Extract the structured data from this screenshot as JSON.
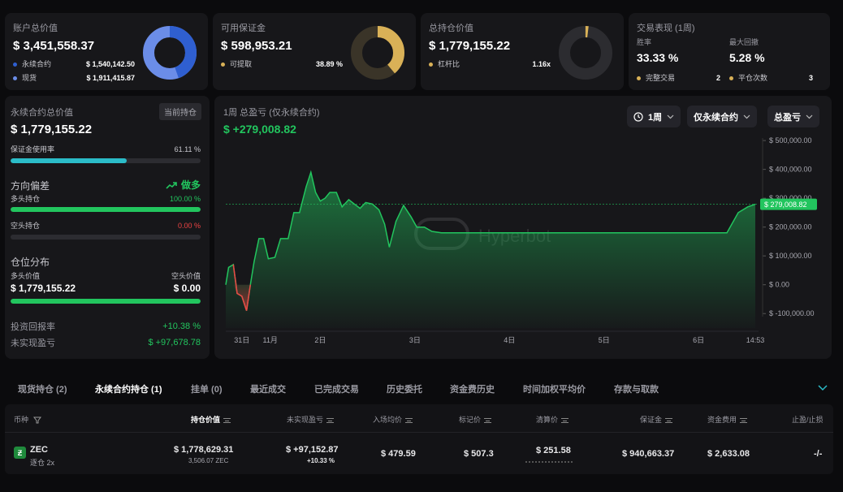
{
  "account": {
    "title": "账户总价值",
    "value": "$ 3,451,558.37",
    "items": [
      {
        "label": "永续合约",
        "value": "$ 1,540,142.50"
      },
      {
        "label": "现货",
        "value": "$ 1,911,415.87"
      }
    ],
    "colors": {
      "perp": "#2f5fd0",
      "spot": "#6b8de8"
    }
  },
  "margin": {
    "title": "可用保证金",
    "value": "$ 598,953.21",
    "item_label": "可提取",
    "item_value": "38.89 %",
    "fraction": 0.3889,
    "color": "#d9b157"
  },
  "holdings": {
    "title": "总持仓价值",
    "value": "$ 1,779,155.22",
    "item_label": "杠杆比",
    "item_value": "1.16x",
    "color": "#d9b157"
  },
  "performance": {
    "title": "交易表现 (1周)",
    "winrate_label": "胜率",
    "winrate": "33.33 %",
    "drawdown_label": "最大回撤",
    "drawdown": "5.28 %",
    "closed_label": "完整交易",
    "closed_value": "2",
    "count_label": "平仓次数",
    "count_value": "3"
  },
  "perp": {
    "title": "永续合约总价值",
    "badge": "当前持仓",
    "value": "$ 1,779,155.22",
    "margin_usage_label": "保证金使用率",
    "margin_usage": "61.11 %",
    "margin_usage_fraction": 0.6111,
    "bias_label": "方向偏差",
    "bias_value": "做多",
    "long_label": "多头持仓",
    "long_value": "100.00 %",
    "long_fraction": 1.0,
    "short_label": "空头持仓",
    "short_value": "0.00 %",
    "short_fraction": 0.0,
    "dist_label": "仓位分布",
    "long_val_label": "多头价值",
    "short_val_label": "空头价值",
    "long_val": "$ 1,779,155.22",
    "short_val": "$ 0.00",
    "roi_label": "投资回报率",
    "roi_value": "+10.38 %",
    "upnl_label": "未实现盈亏",
    "upnl_value": "$ +97,678.78"
  },
  "chart_panel": {
    "title": "1周 总盈亏 (仅永续合约)",
    "value": "$ +279,008.82",
    "btn_period": "1周",
    "btn_scope": "仅永续合约",
    "btn_metric": "总盈亏",
    "watermark": "Hyperbot"
  },
  "chart_data": {
    "type": "area",
    "ylim": [
      -150000,
      520000
    ],
    "yticks": [
      "$ 500,000.00",
      "$ 400,000.00",
      "$ 300,000.00",
      "$ 200,000.00",
      "$ 100,000.00",
      "$ 0.00",
      "$ -100,000.00"
    ],
    "ytick_values": [
      500000,
      400000,
      300000,
      200000,
      100000,
      0,
      -100000
    ],
    "xticks": [
      "31日",
      "11月",
      "2日",
      "3日",
      "4日",
      "5日",
      "6日",
      "14:53"
    ],
    "xtick_positions": [
      0.17,
      0.47,
      1.0,
      2.0,
      3.0,
      4.0,
      5.0,
      5.6
    ],
    "x": [
      0,
      0.03,
      0.08,
      0.12,
      0.17,
      0.22,
      0.26,
      0.3,
      0.35,
      0.4,
      0.45,
      0.52,
      0.58,
      0.66,
      0.72,
      0.78,
      0.85,
      0.9,
      0.95,
      1.0,
      1.05,
      1.1,
      1.17,
      1.23,
      1.3,
      1.36,
      1.42,
      1.48,
      1.55,
      1.62,
      1.68,
      1.73,
      1.8,
      1.88,
      1.96,
      2.02,
      2.1,
      2.18,
      2.28,
      2.38,
      2.5,
      5.0,
      5.18,
      5.3,
      5.42,
      5.52,
      5.6
    ],
    "y": [
      0,
      60000,
      70000,
      -30000,
      -40000,
      -90000,
      0,
      80000,
      160000,
      160000,
      90000,
      95000,
      160000,
      160000,
      250000,
      250000,
      340000,
      390000,
      320000,
      290000,
      300000,
      320000,
      320000,
      270000,
      295000,
      280000,
      265000,
      285000,
      280000,
      260000,
      210000,
      130000,
      220000,
      275000,
      235000,
      200000,
      200000,
      185000,
      180000,
      180000,
      180000,
      180000,
      180000,
      180000,
      250000,
      270000,
      279008
    ],
    "last_label": "$ 279,008.82",
    "reference_value": 279008,
    "colors": {
      "up": "#22c55e",
      "down": "#ef4444"
    }
  },
  "tabs": [
    {
      "label": "现货持仓 (2)"
    },
    {
      "label": "永续合约持仓 (1)"
    },
    {
      "label": "挂单 (0)"
    },
    {
      "label": "最近成交"
    },
    {
      "label": "已完成交易"
    },
    {
      "label": "历史委托"
    },
    {
      "label": "资金费历史"
    },
    {
      "label": "时间加权平均价"
    },
    {
      "label": "存款与取款"
    }
  ],
  "table": {
    "headers": [
      "币种",
      "持仓价值",
      "未实现盈亏",
      "入场均价",
      "标记价",
      "清算价",
      "保证金",
      "资金费用",
      "止盈/止损"
    ],
    "row": {
      "coin": "ZEC",
      "mode": "逐仓 2x",
      "value": "$ 1,778,629.31",
      "size": "3,506.07 ZEC",
      "upnl": "$ +97,152.87",
      "upnl_pct": "+10.33 %",
      "entry": "$ 479.59",
      "mark": "$ 507.3",
      "liq": "$ 251.58",
      "margin": "$ 940,663.37",
      "funding": "$ 2,633.08",
      "tpsl": "-/-"
    }
  }
}
